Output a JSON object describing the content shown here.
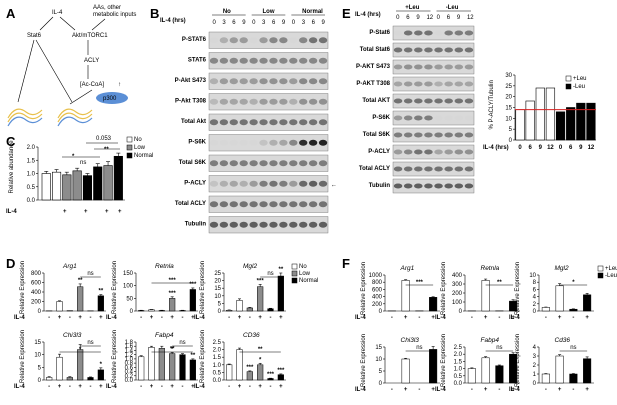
{
  "panels": {
    "A": "A",
    "B": "B",
    "C": "C",
    "D": "D",
    "E": "E",
    "F": "F"
  },
  "panelA": {
    "il4": "IL-4",
    "inputs": "AAs, other",
    "inputs2": "metabolic inputs",
    "stat6": "Stat6",
    "akt": "Akt/mTORC1",
    "acly": "ACLY",
    "accoa": "[Ac-CoA]",
    "up": "↑",
    "p300": "p300"
  },
  "panelB": {
    "title_hrs": "IL-4 (hrs)",
    "groups": [
      "No",
      "Low",
      "Normal"
    ],
    "timepoints": [
      "0",
      "3",
      "6",
      "9",
      "0",
      "3",
      "6",
      "9",
      "0",
      "3",
      "6",
      "9"
    ],
    "rows": [
      "P-STAT6",
      "STAT6",
      "P-Akt S473",
      "P-Akt T308",
      "Total Akt",
      "P-S6K",
      "Total S6K",
      "P-ACLY",
      "Total ACLY",
      "Tubulin"
    ],
    "arrow": "←"
  },
  "panelC": {
    "ylabel": "Relative abundance",
    "xlabel": "IL-4",
    "plus": "+",
    "legend": [
      "No",
      "Low",
      "Normal"
    ],
    "ns": "ns",
    "star1": "*",
    "pval": "0.053",
    "star2": "**",
    "colors": [
      "#ffffff",
      "#8c8c8c",
      "#000000"
    ],
    "chart_data": {
      "type": "bar",
      "ylim": [
        0,
        2
      ],
      "yticks": [
        "0.0",
        "0.5",
        "1.0",
        "1.5",
        "2.0"
      ],
      "bars": [
        {
          "group": "No",
          "il4": "-",
          "value": 1.0,
          "err": 0.08
        },
        {
          "group": "Low",
          "il4": "-",
          "value": 1.05,
          "err": 0.1
        },
        {
          "group": "Normal",
          "il4": "-",
          "value": 0.95,
          "err": 0.1
        },
        {
          "group": "No",
          "il4": "+",
          "value": 1.1,
          "err": 0.1
        },
        {
          "group": "Low",
          "il4": "+",
          "value": 0.92,
          "err": 0.08
        },
        {
          "group": "Normal",
          "il4": "+",
          "value": 1.25,
          "err": 0.12
        },
        {
          "group": "Normal",
          "il4": "+",
          "value": 1.3,
          "err": 0.15
        },
        {
          "group": "Normal",
          "il4": "+",
          "value": 1.65,
          "err": 0.12
        }
      ]
    }
  },
  "panelD": {
    "ylabel": "Relative Expression",
    "il4": "IL-4",
    "legend": [
      "No",
      "Low",
      "Normal"
    ],
    "charts": [
      {
        "gene": "Arg1",
        "yticks": [
          "0",
          "200",
          "400",
          "600",
          "800"
        ],
        "ymax": 800,
        "values": [
          5,
          200,
          8,
          510,
          5,
          320
        ],
        "err": [
          2,
          15,
          2,
          60,
          2,
          25
        ],
        "marks": [
          "",
          "",
          "",
          "**",
          "",
          "**"
        ],
        "ns": "ns"
      },
      {
        "gene": "Retnla",
        "yticks": [
          "0",
          "50",
          "100",
          "150"
        ],
        "ymax": 150,
        "values": [
          2,
          5,
          2,
          50,
          2,
          85
        ],
        "err": [
          1,
          1,
          1,
          6,
          1,
          6
        ],
        "marks": [
          "",
          "",
          "",
          "***",
          "",
          "***"
        ],
        "sig": "***"
      },
      {
        "gene": "Mgl2",
        "yticks": [
          "0",
          "5",
          "10",
          "15",
          "20",
          "25"
        ],
        "ymax": 25,
        "values": [
          0.5,
          7,
          2,
          16,
          1.5,
          23
        ],
        "err": [
          0.2,
          1,
          0.4,
          1.5,
          0.3,
          2
        ],
        "marks": [
          "",
          "",
          "",
          "***",
          "",
          "**"
        ],
        "ns": "ns"
      },
      {
        "gene": "Chi3l3",
        "yticks": [
          "0",
          "5",
          "10",
          "15"
        ],
        "ymax": 15,
        "values": [
          1,
          9,
          1,
          12,
          1,
          4
        ],
        "err": [
          0.3,
          1.2,
          0.3,
          2,
          0.2,
          0.8
        ],
        "marks": [
          "",
          "",
          "",
          "",
          "",
          "*"
        ],
        "ns": "ns",
        "sig": "*"
      },
      {
        "gene": "Fabp4",
        "yticks": [
          "0.0",
          "0.2",
          "0.4",
          "0.6",
          "0.8",
          "1.0",
          "1.2",
          "1.4",
          "1.6",
          "1.8"
        ],
        "ymax": 1.8,
        "values": [
          1.1,
          1.55,
          1.5,
          1.25,
          1.2,
          0.95
        ],
        "err": [
          0.05,
          0.05,
          0.1,
          0.05,
          0.05,
          0.05
        ],
        "marks": [
          "",
          "",
          "",
          "**",
          "",
          "**"
        ],
        "ns": "ns",
        "sig": "*"
      },
      {
        "gene": "CD36",
        "yticks": [
          "0.0",
          "0.5",
          "1.0",
          "1.5",
          "2.0",
          "2.5"
        ],
        "ymax": 2.5,
        "values": [
          1.0,
          2.0,
          0.55,
          1.0,
          0.1,
          0.35
        ],
        "err": [
          0.05,
          0.1,
          0.05,
          0.1,
          0.02,
          0.05
        ],
        "marks": [
          "",
          "",
          "***",
          "*",
          "***",
          "***"
        ],
        "sig": "**"
      }
    ]
  },
  "panelE": {
    "title_hrs": "IL-4 (hrs)",
    "groups": [
      "+Leu",
      "-Leu"
    ],
    "timepoints": [
      "0",
      "6",
      "9",
      "12",
      "0",
      "6",
      "9",
      "12"
    ],
    "rows": [
      "P-Stat6",
      "Total Stat6",
      "P-AKT S473",
      "P-AKT T308",
      "Total AKT",
      "P-S6K",
      "Total S6K",
      "P-ACLY",
      "Total ACLY",
      "Tubulin"
    ],
    "chart": {
      "ylabel": "% P-ACLY/Tubulin",
      "xlabel": "IL-4 (hrs)",
      "legend": [
        "+Leu",
        "-Leu"
      ],
      "yticks": [
        "0",
        "5",
        "10",
        "15",
        "20",
        "25",
        "30"
      ],
      "xticks": [
        "0",
        "6",
        "9",
        "12",
        "0",
        "6",
        "9",
        "12"
      ],
      "chart_data": {
        "type": "bar",
        "ylim": [
          0,
          30
        ],
        "values": [
          14,
          18,
          24,
          24,
          13,
          15,
          17,
          17
        ],
        "reference_line": 14
      }
    }
  },
  "panelF": {
    "ylabel": "Relative Expression",
    "il4": "IL-4",
    "legend": [
      "+Leu",
      "-Leu"
    ],
    "charts": [
      {
        "gene": "Arg1",
        "yticks": [
          "0",
          "200",
          "400",
          "600",
          "800",
          "1000"
        ],
        "ymax": 1000,
        "values": [
          5,
          850,
          5,
          380
        ],
        "err": [
          2,
          20,
          2,
          15
        ],
        "sig": "***"
      },
      {
        "gene": "Retnla",
        "yticks": [
          "0",
          "100",
          "200",
          "300",
          "400"
        ],
        "ymax": 400,
        "values": [
          2,
          340,
          2,
          110
        ],
        "err": [
          1,
          15,
          1,
          15
        ],
        "sig": "**"
      },
      {
        "gene": "Mgl2",
        "yticks": [
          "0",
          "2",
          "4",
          "6",
          "8",
          "10"
        ],
        "ymax": 10,
        "values": [
          1,
          7,
          0.5,
          4.5
        ],
        "err": [
          0.1,
          0.6,
          0.1,
          0.4
        ],
        "sig": "*"
      },
      {
        "gene": "Chi3l3",
        "yticks": [
          "0",
          "5",
          "10",
          "15"
        ],
        "ymax": 15,
        "values": [
          0,
          10,
          0,
          14
        ],
        "err": [
          0,
          0.3,
          0,
          1.2
        ],
        "ns": "ns"
      },
      {
        "gene": "Fabp4",
        "yticks": [
          "0.0",
          "0.5",
          "1.0",
          "1.5",
          "2.0",
          "2.5"
        ],
        "ymax": 2.5,
        "values": [
          1.0,
          1.75,
          1.2,
          2.0
        ],
        "err": [
          0.05,
          0.08,
          0.05,
          0.1
        ],
        "ns": "ns"
      },
      {
        "gene": "Cd36",
        "yticks": [
          "0",
          "1",
          "2",
          "3",
          "4"
        ],
        "ymax": 4,
        "values": [
          1,
          3.0,
          1.0,
          2.7
        ],
        "err": [
          0.05,
          0.15,
          0.05,
          0.2
        ],
        "ns": "ns"
      }
    ]
  }
}
